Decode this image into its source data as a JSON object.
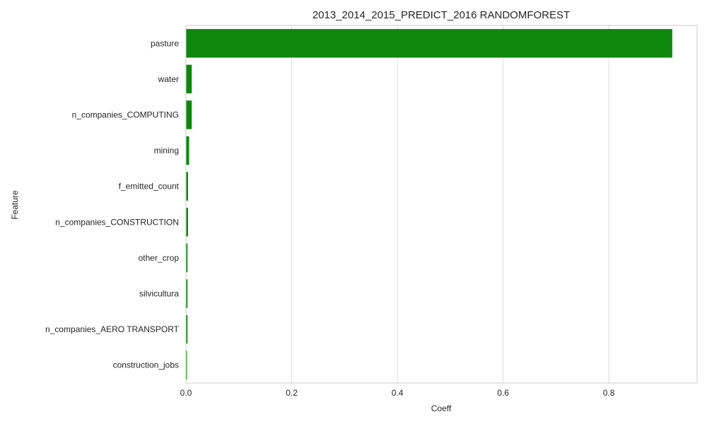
{
  "chart_data": {
    "type": "bar",
    "orientation": "horizontal",
    "title": "2013_2014_2015_PREDICT_2016 RANDOMFOREST",
    "xlabel": "Coeff",
    "ylabel": "Feature",
    "categories": [
      "pasture",
      "water",
      "n_companies_COMPUTING",
      "mining",
      "f_emitted_count",
      "n_companies_CONSTRUCTION",
      "other_crop",
      "silvicultura",
      "n_companies_AERO TRANSPORT",
      "construction_jobs"
    ],
    "values": [
      0.92,
      0.011,
      0.011,
      0.006,
      0.004,
      0.004,
      0.003,
      0.003,
      0.003,
      0.002
    ],
    "xlim": [
      0,
      0.967
    ],
    "xticks": [
      0,
      0.2,
      0.4,
      0.6,
      0.8
    ],
    "xtick_labels": [
      "0.0",
      "0.2",
      "0.4",
      "0.6",
      "0.8"
    ],
    "grid": true,
    "bar_color": "#008000"
  }
}
